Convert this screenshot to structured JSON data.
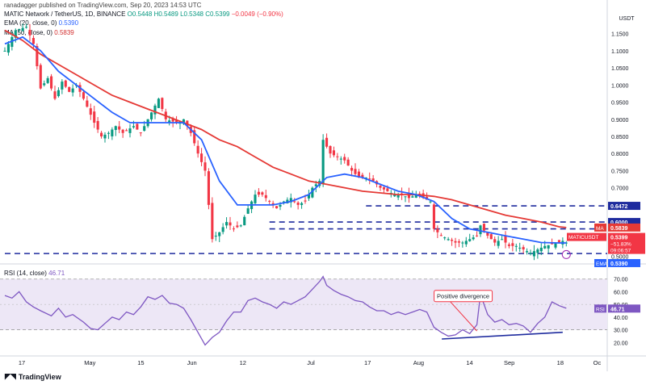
{
  "header": {
    "published": "ranadagger published on TradingView.com, Sep 20, 2023 14:53 UTC",
    "symbol": "MATIC Network / TetherUS, 1D, BINANCE",
    "open": "O0.5448",
    "high": "H0.5489",
    "low": "L0.5348",
    "close": "C0.5399",
    "change": "−0.0049 (−0.90%)",
    "ema_label": "EMA (20, close, 0)",
    "ema_value": "0.5390",
    "ma_label": "MA (50, close, 0)",
    "ma_value": "0.5839"
  },
  "rsi_header": {
    "label": "RSI (14, close)",
    "value": "46.71"
  },
  "branding": "TradingView",
  "colors": {
    "up": "#089981",
    "down": "#f23645",
    "ema": "#2962ff",
    "ma": "#e53935",
    "rsi": "#7e57c2",
    "rsi_band": "#ede7f6",
    "level": "#1e2b9e",
    "divergence": "#1e2b9e"
  },
  "chart_data": {
    "type": "candlestick",
    "currency": "USDT",
    "y_range": [
      0.48,
      1.22
    ],
    "y_ticks": [
      "1.1500",
      "1.1000",
      "1.0500",
      "1.0000",
      "0.9500",
      "0.9000",
      "0.8500",
      "0.8000",
      "0.7500",
      "0.7000",
      "0.6500",
      "0.6000",
      "0.5500",
      "0.5000"
    ],
    "x_labels": [
      "17",
      "May",
      "15",
      "Jun",
      "12",
      "Jul",
      "17",
      "Aug",
      "14",
      "Sep",
      "18",
      "Oc"
    ],
    "price_tags": [
      {
        "value": 0.6472,
        "text": "0.6472",
        "style": "level"
      },
      {
        "value": 0.6,
        "text": "0.6000",
        "style": "level"
      },
      {
        "value": 0.5839,
        "text": "0.5839",
        "style": "ma",
        "tag": "MA"
      },
      {
        "value": 0.5399,
        "text": "0.5399",
        "style": "price",
        "tag": "MATICUSDT",
        "extra": [
          "−51.83%",
          "09:06:57"
        ]
      },
      {
        "value": 0.539,
        "text": "0.5390",
        "style": "ema",
        "tag": "EMA"
      }
    ],
    "levels": [
      {
        "value": 0.508,
        "start_day": 0
      },
      {
        "value": 0.58,
        "start_day": 74
      },
      {
        "value": 0.6,
        "start_day": 74
      },
      {
        "value": 0.6472,
        "start_day": 101
      }
    ],
    "ohlc_path": [
      [
        0,
        1.1
      ],
      [
        3,
        1.16
      ],
      [
        6,
        1.17
      ],
      [
        8,
        1.12
      ],
      [
        10,
        0.99
      ],
      [
        12,
        1.02
      ],
      [
        14,
        0.96
      ],
      [
        16,
        1.01
      ],
      [
        18,
        0.98
      ],
      [
        20,
        1.0
      ],
      [
        22,
        0.96
      ],
      [
        25,
        0.89
      ],
      [
        27,
        0.85
      ],
      [
        29,
        0.86
      ],
      [
        31,
        0.88
      ],
      [
        33,
        0.86
      ],
      [
        36,
        0.88
      ],
      [
        38,
        0.86
      ],
      [
        40,
        0.9
      ],
      [
        43,
        0.96
      ],
      [
        45,
        0.9
      ],
      [
        48,
        0.89
      ],
      [
        50,
        0.9
      ],
      [
        52,
        0.86
      ],
      [
        54,
        0.8
      ],
      [
        56,
        0.75
      ],
      [
        58,
        0.55
      ],
      [
        60,
        0.57
      ],
      [
        62,
        0.6
      ],
      [
        64,
        0.58
      ],
      [
        66,
        0.59
      ],
      [
        68,
        0.64
      ],
      [
        70,
        0.68
      ],
      [
        72,
        0.68
      ],
      [
        74,
        0.66
      ],
      [
        76,
        0.64
      ],
      [
        78,
        0.66
      ],
      [
        80,
        0.67
      ],
      [
        82,
        0.65
      ],
      [
        84,
        0.66
      ],
      [
        86,
        0.7
      ],
      [
        88,
        0.72
      ],
      [
        89,
        0.84
      ],
      [
        91,
        0.8
      ],
      [
        93,
        0.79
      ],
      [
        95,
        0.78
      ],
      [
        97,
        0.75
      ],
      [
        99,
        0.73
      ],
      [
        101,
        0.73
      ],
      [
        103,
        0.72
      ],
      [
        105,
        0.7
      ],
      [
        107,
        0.69
      ],
      [
        109,
        0.68
      ],
      [
        111,
        0.68
      ],
      [
        113,
        0.67
      ],
      [
        115,
        0.68
      ],
      [
        117,
        0.67
      ],
      [
        119,
        0.66
      ],
      [
        120,
        0.58
      ],
      [
        122,
        0.56
      ],
      [
        124,
        0.55
      ],
      [
        126,
        0.54
      ],
      [
        128,
        0.54
      ],
      [
        130,
        0.55
      ],
      [
        132,
        0.56
      ],
      [
        133,
        0.59
      ],
      [
        135,
        0.56
      ],
      [
        137,
        0.54
      ],
      [
        139,
        0.55
      ],
      [
        141,
        0.53
      ],
      [
        143,
        0.53
      ],
      [
        145,
        0.52
      ],
      [
        147,
        0.51
      ],
      [
        149,
        0.52
      ],
      [
        151,
        0.53
      ],
      [
        153,
        0.535
      ],
      [
        155,
        0.54
      ],
      [
        156,
        0.545
      ],
      [
        157,
        0.54
      ]
    ],
    "ema_path": [
      [
        0,
        1.12
      ],
      [
        5,
        1.14
      ],
      [
        10,
        1.1
      ],
      [
        15,
        1.04
      ],
      [
        20,
        1.0
      ],
      [
        25,
        0.96
      ],
      [
        30,
        0.92
      ],
      [
        35,
        0.89
      ],
      [
        40,
        0.89
      ],
      [
        45,
        0.89
      ],
      [
        50,
        0.89
      ],
      [
        55,
        0.84
      ],
      [
        60,
        0.72
      ],
      [
        65,
        0.65
      ],
      [
        70,
        0.65
      ],
      [
        75,
        0.65
      ],
      [
        80,
        0.66
      ],
      [
        85,
        0.68
      ],
      [
        90,
        0.73
      ],
      [
        95,
        0.74
      ],
      [
        100,
        0.73
      ],
      [
        105,
        0.71
      ],
      [
        110,
        0.69
      ],
      [
        115,
        0.68
      ],
      [
        120,
        0.66
      ],
      [
        125,
        0.61
      ],
      [
        130,
        0.58
      ],
      [
        135,
        0.57
      ],
      [
        140,
        0.56
      ],
      [
        145,
        0.55
      ],
      [
        150,
        0.54
      ],
      [
        155,
        0.539
      ],
      [
        157,
        0.539
      ]
    ],
    "ma_path": [
      [
        0,
        1.16
      ],
      [
        5,
        1.13
      ],
      [
        10,
        1.09
      ],
      [
        15,
        1.06
      ],
      [
        20,
        1.03
      ],
      [
        25,
        1.0
      ],
      [
        30,
        0.97
      ],
      [
        35,
        0.95
      ],
      [
        40,
        0.93
      ],
      [
        45,
        0.91
      ],
      [
        50,
        0.89
      ],
      [
        55,
        0.87
      ],
      [
        60,
        0.84
      ],
      [
        65,
        0.82
      ],
      [
        70,
        0.79
      ],
      [
        75,
        0.76
      ],
      [
        80,
        0.74
      ],
      [
        85,
        0.72
      ],
      [
        90,
        0.71
      ],
      [
        95,
        0.7
      ],
      [
        100,
        0.69
      ],
      [
        105,
        0.685
      ],
      [
        110,
        0.68
      ],
      [
        115,
        0.68
      ],
      [
        120,
        0.675
      ],
      [
        125,
        0.665
      ],
      [
        130,
        0.65
      ],
      [
        135,
        0.635
      ],
      [
        140,
        0.62
      ],
      [
        145,
        0.61
      ],
      [
        150,
        0.6
      ],
      [
        155,
        0.586
      ],
      [
        157,
        0.584
      ]
    ],
    "rsi": {
      "y_range": [
        10,
        80
      ],
      "y_ticks": [
        "70.00",
        "60.00",
        "50.00",
        "40.00",
        "30.00",
        "20.00"
      ],
      "band": [
        30,
        70
      ],
      "current": {
        "value": 46.71,
        "text": "46.71",
        "tag": "RSI"
      },
      "path": [
        [
          0,
          57
        ],
        [
          2,
          55
        ],
        [
          4,
          60
        ],
        [
          6,
          52
        ],
        [
          8,
          48
        ],
        [
          10,
          45
        ],
        [
          13,
          41
        ],
        [
          15,
          47
        ],
        [
          17,
          40
        ],
        [
          19,
          42
        ],
        [
          22,
          36
        ],
        [
          24,
          31
        ],
        [
          26,
          30
        ],
        [
          28,
          35
        ],
        [
          30,
          40
        ],
        [
          32,
          38
        ],
        [
          34,
          44
        ],
        [
          36,
          42
        ],
        [
          38,
          48
        ],
        [
          40,
          56
        ],
        [
          42,
          54
        ],
        [
          44,
          57
        ],
        [
          46,
          51
        ],
        [
          48,
          50
        ],
        [
          50,
          47
        ],
        [
          52,
          38
        ],
        [
          54,
          28
        ],
        [
          56,
          18
        ],
        [
          58,
          24
        ],
        [
          60,
          28
        ],
        [
          62,
          37
        ],
        [
          64,
          44
        ],
        [
          66,
          44
        ],
        [
          68,
          53
        ],
        [
          70,
          55
        ],
        [
          72,
          52
        ],
        [
          74,
          50
        ],
        [
          76,
          47
        ],
        [
          78,
          52
        ],
        [
          80,
          50
        ],
        [
          82,
          53
        ],
        [
          84,
          56
        ],
        [
          86,
          62
        ],
        [
          88,
          68
        ],
        [
          89,
          72
        ],
        [
          90,
          65
        ],
        [
          92,
          61
        ],
        [
          94,
          58
        ],
        [
          96,
          56
        ],
        [
          98,
          53
        ],
        [
          100,
          52
        ],
        [
          102,
          48
        ],
        [
          104,
          45
        ],
        [
          106,
          45
        ],
        [
          108,
          42
        ],
        [
          110,
          44
        ],
        [
          112,
          42
        ],
        [
          114,
          44
        ],
        [
          116,
          46
        ],
        [
          118,
          44
        ],
        [
          120,
          32
        ],
        [
          122,
          28
        ],
        [
          124,
          25
        ],
        [
          126,
          26
        ],
        [
          128,
          30
        ],
        [
          130,
          27
        ],
        [
          132,
          34
        ],
        [
          133,
          58
        ],
        [
          135,
          42
        ],
        [
          137,
          36
        ],
        [
          139,
          38
        ],
        [
          141,
          34
        ],
        [
          143,
          35
        ],
        [
          145,
          33
        ],
        [
          147,
          28
        ],
        [
          149,
          35
        ],
        [
          151,
          40
        ],
        [
          153,
          52
        ],
        [
          155,
          49
        ],
        [
          157,
          47
        ]
      ],
      "divergence": {
        "start": [
          124,
          24
        ],
        "end": [
          156,
          28
        ],
        "label": "Positive divergence"
      }
    },
    "annotation": {
      "label": "Positive divergence"
    }
  }
}
